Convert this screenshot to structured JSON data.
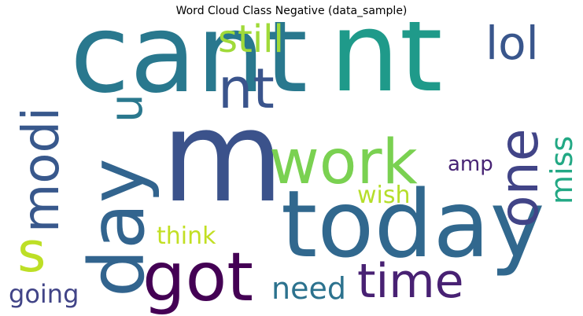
{
  "figure": {
    "title": "Word Cloud Class Negative (data_sample)"
  },
  "words": {
    "cant": {
      "text": "cant",
      "color": "#29788e"
    },
    "nt_big": {
      "text": "nt",
      "color": "#1f9a8a"
    },
    "m": {
      "text": "m",
      "color": "#3b528b"
    },
    "work": {
      "text": "work",
      "color": "#7ad151"
    },
    "today": {
      "text": "today",
      "color": "#31688e"
    },
    "day": {
      "text": "day",
      "color": "#32648e"
    },
    "got": {
      "text": "got",
      "color": "#440154"
    },
    "modi": {
      "text": "modi",
      "color": "#38588c"
    },
    "one": {
      "text": "one",
      "color": "#414487"
    },
    "u": {
      "text": "u",
      "color": "#2a788e"
    },
    "nt_small": {
      "text": "nt",
      "color": "#3a548c"
    },
    "still": {
      "text": "still",
      "color": "#a0da39"
    },
    "lol": {
      "text": "lol",
      "color": "#39568c"
    },
    "time": {
      "text": "time",
      "color": "#482173"
    },
    "need": {
      "text": "need",
      "color": "#2c728e"
    },
    "s": {
      "text": "s",
      "color": "#bddf26"
    },
    "miss": {
      "text": "miss",
      "color": "#22a884"
    },
    "amp": {
      "text": "amp",
      "color": "#482475"
    },
    "wish": {
      "text": "wish",
      "color": "#b5de2b"
    },
    "think": {
      "text": "think",
      "color": "#c2df23"
    },
    "going": {
      "text": "going",
      "color": "#414487"
    }
  }
}
